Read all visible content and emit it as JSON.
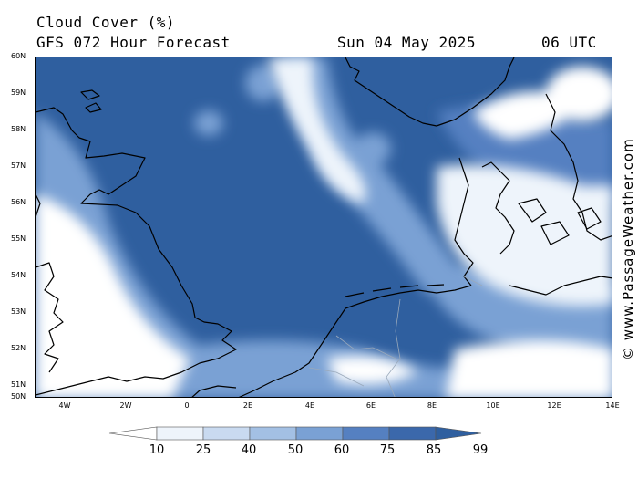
{
  "header": {
    "title": "Cloud Cover (%)",
    "subtitle": "GFS 072 Hour Forecast",
    "date": "Sun 04 May 2025",
    "time": "06 UTC"
  },
  "axes": {
    "lat_labels": [
      "60N",
      "59N",
      "58N",
      "57N",
      "56N",
      "55N",
      "54N",
      "53N",
      "52N",
      "51N",
      "50N"
    ],
    "lon_labels": [
      "4W",
      "2W",
      "0",
      "2E",
      "4E",
      "6E",
      "8E",
      "10E",
      "12E",
      "14E"
    ]
  },
  "credit": "© www.PassageWeather.com",
  "legend": {
    "labels": [
      "10",
      "25",
      "40",
      "50",
      "60",
      "75",
      "85",
      "99"
    ],
    "colors": [
      "#ffffff",
      "#eef4fb",
      "#c9daf0",
      "#a3c0e4",
      "#7aa1d4",
      "#5580c1",
      "#3b68ab",
      "#2f5f9f"
    ]
  }
}
